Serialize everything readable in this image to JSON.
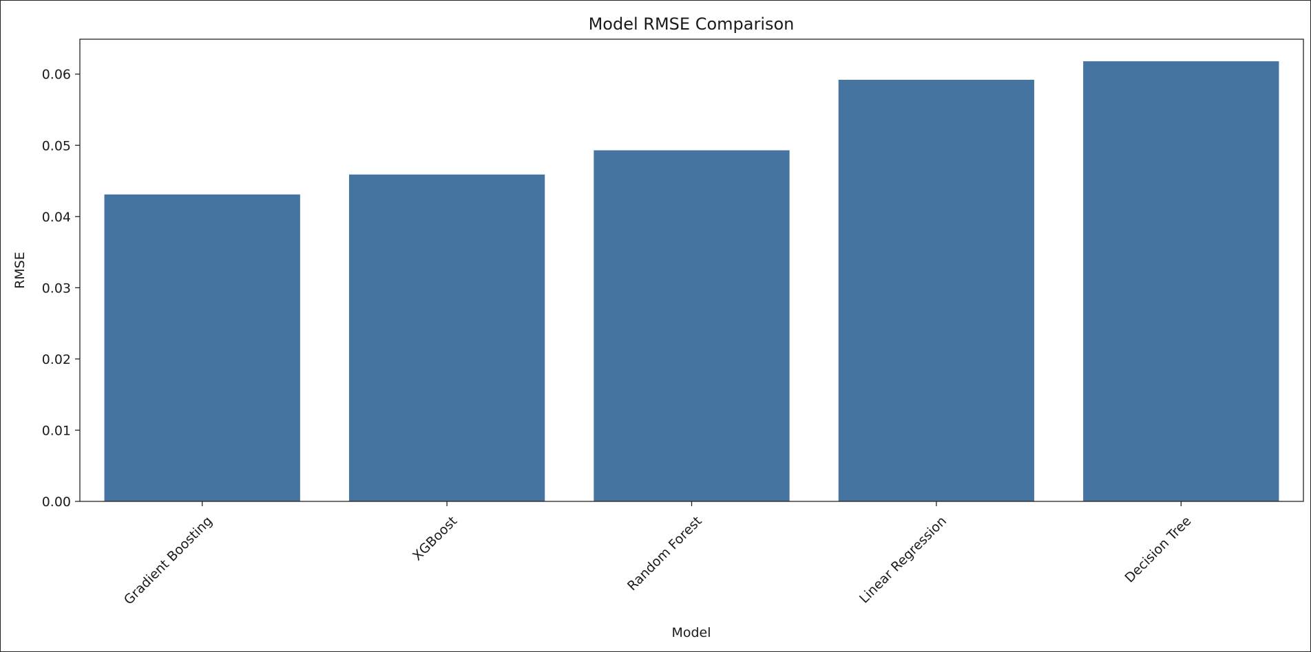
{
  "chart_data": {
    "type": "bar",
    "title": "Model RMSE Comparison",
    "xlabel": "Model",
    "ylabel": "RMSE",
    "categories": [
      "Gradient Boosting",
      "XGBoost",
      "Random Forest",
      "Linear Regression",
      "Decision Tree"
    ],
    "values": [
      0.0431,
      0.0459,
      0.0493,
      0.0592,
      0.0618
    ],
    "ylim": [
      0,
      0.0649
    ],
    "yticks": [
      0.0,
      0.01,
      0.02,
      0.03,
      0.04,
      0.05,
      0.06
    ],
    "ytick_labels": [
      "0.00",
      "0.01",
      "0.02",
      "0.03",
      "0.04",
      "0.05",
      "0.06"
    ],
    "bar_color": "#4574a0",
    "grid": false,
    "legend": "none"
  }
}
